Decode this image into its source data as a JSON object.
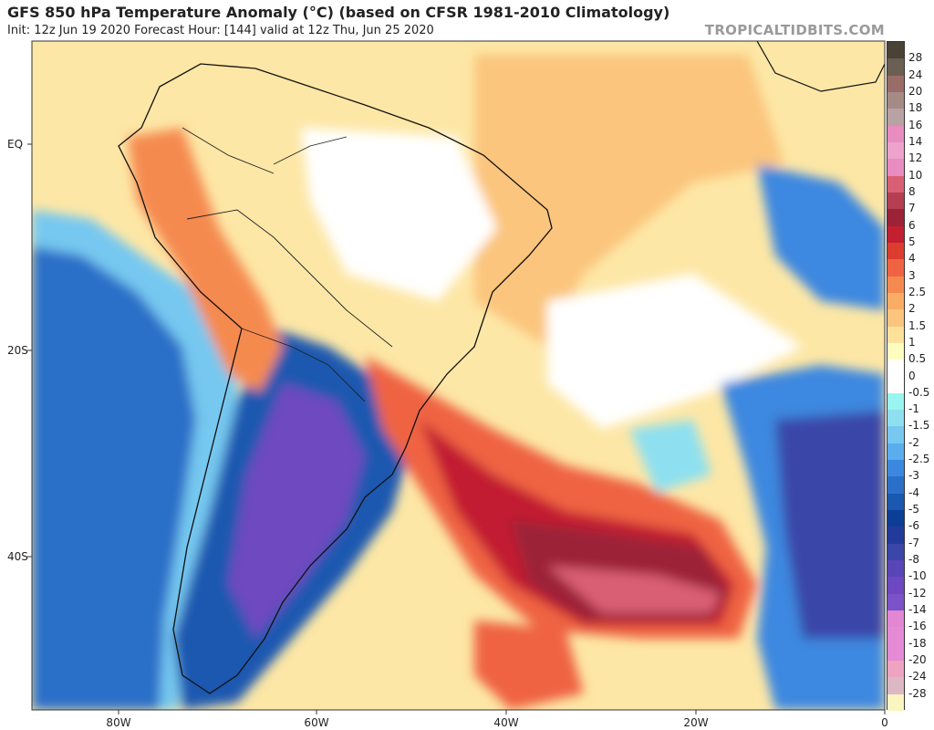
{
  "header": {
    "title": "GFS 850 hPa Temperature Anomaly (°C) (based on CFSR 1981-2010 Climatology)",
    "subtitle": "Init: 12z Jun 19 2020   Forecast Hour: [144]   valid at 12z Thu, Jun 25 2020",
    "brand": "TROPICALTIDBITS.COM"
  },
  "map": {
    "lat_labels": [
      "EQ",
      "20S",
      "40S"
    ],
    "lon_labels": [
      "80W",
      "60W",
      "40W",
      "20W",
      "0"
    ]
  },
  "colorbar": {
    "labels": [
      "28",
      "24",
      "20",
      "18",
      "16",
      "14",
      "12",
      "10",
      "8",
      "7",
      "6",
      "5",
      "4",
      "3",
      "2.5",
      "2",
      "1.5",
      "1",
      "0.5",
      "0",
      "-0.5",
      "-1",
      "-1.5",
      "-2",
      "-2.5",
      "-3",
      "-4",
      "-5",
      "-6",
      "-7",
      "-8",
      "-10",
      "-12",
      "-14",
      "-16",
      "-18",
      "-20",
      "-24",
      "-28"
    ],
    "colors": [
      "#4a4236",
      "#6b5e52",
      "#9a6d68",
      "#a58a86",
      "#b9a2a4",
      "#e98cc2",
      "#eea3cc",
      "#e98cc2",
      "#d95f74",
      "#b53e51",
      "#9c2238",
      "#c21f30",
      "#dc3d2e",
      "#ef6342",
      "#f58a50",
      "#f9ac64",
      "#fbc57d",
      "#fde19b",
      "#fefdc0",
      "#ffffff",
      "#ffffff",
      "#9af5f0",
      "#8ee0f0",
      "#76c8f0",
      "#5aaeee",
      "#3c88e0",
      "#2b70c8",
      "#1b58b0",
      "#0d3e96",
      "#233a9a",
      "#3a46a8",
      "#5a45b8",
      "#6e48c0",
      "#7c52c8",
      "#e386d4",
      "#e58ad4",
      "#e58ad4",
      "#eea3c0",
      "#dcb8c4",
      "#fbf5c0"
    ]
  }
}
